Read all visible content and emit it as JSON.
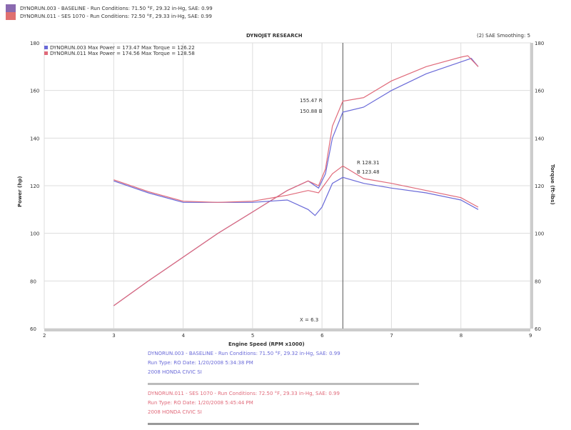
{
  "header": {
    "run1": "DYNORUN.003 - BASELINE - Run Conditions: 71.50 °F, 29.32 in-Hg, SAE: 0.99",
    "run2": "DYNORUN.011 - SES 1070 - Run Conditions: 72.50 °F, 29.33 in-Hg, SAE: 0.99",
    "title": "DYNOJET RESEARCH",
    "smoothing": "(2) SAE  Smoothing: 5",
    "max1": "DYNORUN.003 Max Power = 173.47    Max Torque = 126.22",
    "max2": "DYNORUN.011 Max Power = 174.56    Max Torque = 128.58"
  },
  "cursor": {
    "x_label": "X = 6.3",
    "power_red": "155.47 R",
    "power_blue": "150.88 B",
    "torque_red": "R 128.31",
    "torque_blue": "B 123.48"
  },
  "footer": {
    "blue_line1": "DYNORUN.003 - BASELINE - Run Conditions: 71.50 °F, 29.32 in-Hg, SAE: 0.99",
    "blue_line2": "Run Type: RO  Date: 1/20/2008 5:34:38 PM",
    "blue_line3": "2008 HONDA CIVIC SI",
    "red_line1": "DYNORUN.011 - SES 1070 - Run Conditions: 72.50 °F, 29.33 in-Hg, SAE: 0.99",
    "red_line2": "Run Type: RO  Date: 1/20/2008 5:45:44 PM",
    "red_line3": "2008 HONDA CIVIC SI"
  },
  "chart_data": {
    "type": "line",
    "title": "DYNOJET RESEARCH",
    "xlabel": "Engine Speed (RPM x1000)",
    "ylabel": "Power (hp)",
    "y2label": "Torque (ft-lbs)",
    "xlim": [
      2,
      9
    ],
    "ylim": [
      60,
      180
    ],
    "y2lim": [
      60,
      180
    ],
    "x_ticks": [
      "2",
      "3",
      "4",
      "5",
      "6",
      "7",
      "8",
      "9"
    ],
    "y_ticks": [
      "60",
      "80",
      "100",
      "120",
      "140",
      "160",
      "180"
    ],
    "y2_ticks": [
      "60",
      "80",
      "100",
      "120",
      "140",
      "160",
      "180"
    ],
    "grid": true,
    "colors": {
      "blue": "#6a6ad8",
      "red": "#e06a7a"
    },
    "cursor_x": 6.3,
    "series": [
      {
        "name": "DYNORUN.003 Power",
        "color": "blue",
        "axis": "left",
        "points": [
          [
            3,
            69.6
          ],
          [
            3.5,
            80
          ],
          [
            4,
            90
          ],
          [
            4.5,
            100
          ],
          [
            5,
            109
          ],
          [
            5.5,
            118
          ],
          [
            5.8,
            122
          ],
          [
            5.95,
            119
          ],
          [
            6.05,
            125
          ],
          [
            6.15,
            140
          ],
          [
            6.3,
            150.9
          ],
          [
            6.6,
            153
          ],
          [
            7,
            160
          ],
          [
            7.5,
            167
          ],
          [
            8,
            172
          ],
          [
            8.15,
            173.5
          ],
          [
            8.25,
            170
          ]
        ]
      },
      {
        "name": "DYNORUN.011 Power",
        "color": "red",
        "axis": "left",
        "points": [
          [
            3,
            69.6
          ],
          [
            3.5,
            80
          ],
          [
            4,
            90
          ],
          [
            4.5,
            100
          ],
          [
            5,
            109
          ],
          [
            5.5,
            118
          ],
          [
            5.8,
            122
          ],
          [
            5.95,
            120
          ],
          [
            6.05,
            127
          ],
          [
            6.15,
            145
          ],
          [
            6.3,
            155.5
          ],
          [
            6.6,
            157
          ],
          [
            7,
            164
          ],
          [
            7.5,
            170
          ],
          [
            8,
            174
          ],
          [
            8.1,
            174.6
          ],
          [
            8.25,
            170
          ]
        ]
      },
      {
        "name": "DYNORUN.003 Torque",
        "color": "blue",
        "axis": "right",
        "points": [
          [
            3,
            122
          ],
          [
            3.5,
            117
          ],
          [
            4,
            113
          ],
          [
            4.5,
            113
          ],
          [
            5,
            113
          ],
          [
            5.5,
            114
          ],
          [
            5.8,
            110
          ],
          [
            5.9,
            107.5
          ],
          [
            6.0,
            111
          ],
          [
            6.15,
            121
          ],
          [
            6.3,
            123.5
          ],
          [
            6.6,
            121
          ],
          [
            7,
            119
          ],
          [
            7.5,
            117
          ],
          [
            8,
            114
          ],
          [
            8.25,
            110
          ]
        ]
      },
      {
        "name": "DYNORUN.011 Torque",
        "color": "red",
        "axis": "right",
        "points": [
          [
            3,
            122.5
          ],
          [
            3.5,
            117.5
          ],
          [
            4,
            113.5
          ],
          [
            4.5,
            113
          ],
          [
            5,
            113.5
          ],
          [
            5.5,
            116
          ],
          [
            5.8,
            118
          ],
          [
            5.95,
            117
          ],
          [
            6.15,
            125
          ],
          [
            6.3,
            128.3
          ],
          [
            6.6,
            123
          ],
          [
            7,
            121
          ],
          [
            7.5,
            118
          ],
          [
            8,
            115
          ],
          [
            8.25,
            111
          ]
        ]
      }
    ]
  }
}
